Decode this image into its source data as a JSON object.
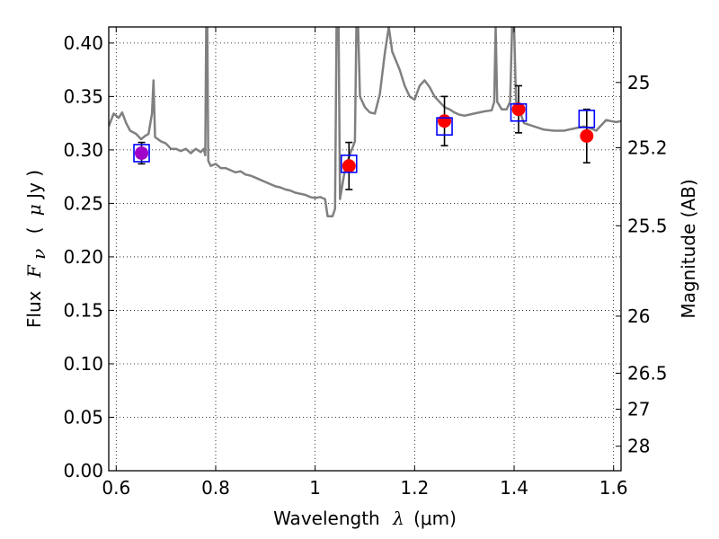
{
  "chart_data": {
    "type": "scatter",
    "x_axis": {
      "label_prefix": "Wavelength",
      "label_symbol": "λ",
      "label_unit": "(μm)",
      "xlim": [
        0.585,
        1.615
      ],
      "ticks": [
        0.6,
        0.8,
        1.0,
        1.2,
        1.4,
        1.6
      ],
      "tick_labels": [
        "0.6",
        "0.8",
        "1",
        "1.2",
        "1.4",
        "1.6"
      ]
    },
    "y_axis": {
      "label_prefix": "Flux",
      "label_symbol": "F",
      "label_subscript": "ν",
      "label_unit_open": "(",
      "label_unit_mu": "μ",
      "label_unit_rest": "Jy )",
      "ylim": [
        0.0,
        0.415
      ],
      "ticks": [
        0.0,
        0.05,
        0.1,
        0.15,
        0.2,
        0.25,
        0.3,
        0.35,
        0.4
      ],
      "tick_labels": [
        "0.00",
        "0.05",
        "0.10",
        "0.15",
        "0.20",
        "0.25",
        "0.30",
        "0.35",
        "0.40"
      ]
    },
    "right_axis": {
      "label": "Magnitude (AB)",
      "ticks": [
        {
          "label": "25",
          "mag": 25.0
        },
        {
          "label": "25.2",
          "mag": 25.2
        },
        {
          "label": "25.5",
          "mag": 25.5
        },
        {
          "label": "26",
          "mag": 26.0
        },
        {
          "label": "26.5",
          "mag": 26.5
        },
        {
          "label": "27",
          "mag": 27.0
        },
        {
          "label": "28",
          "mag": 28.0
        }
      ]
    },
    "grid": true,
    "spectrum": {
      "color": "#808080",
      "points": [
        [
          0.585,
          0.322
        ],
        [
          0.595,
          0.334
        ],
        [
          0.605,
          0.33
        ],
        [
          0.612,
          0.335
        ],
        [
          0.62,
          0.325
        ],
        [
          0.628,
          0.318
        ],
        [
          0.64,
          0.315
        ],
        [
          0.65,
          0.31
        ],
        [
          0.658,
          0.313
        ],
        [
          0.665,
          0.315
        ],
        [
          0.672,
          0.334
        ],
        [
          0.675,
          0.365
        ],
        [
          0.678,
          0.312
        ],
        [
          0.69,
          0.308
        ],
        [
          0.7,
          0.306
        ],
        [
          0.71,
          0.301
        ],
        [
          0.72,
          0.301
        ],
        [
          0.73,
          0.299
        ],
        [
          0.74,
          0.301
        ],
        [
          0.75,
          0.297
        ],
        [
          0.76,
          0.301
        ],
        [
          0.77,
          0.298
        ],
        [
          0.776,
          0.301
        ],
        [
          0.779,
          0.295
        ],
        [
          0.781,
          0.42
        ],
        [
          0.783,
          0.42
        ],
        [
          0.785,
          0.29
        ],
        [
          0.79,
          0.285
        ],
        [
          0.8,
          0.287
        ],
        [
          0.81,
          0.283
        ],
        [
          0.82,
          0.283
        ],
        [
          0.83,
          0.281
        ],
        [
          0.84,
          0.279
        ],
        [
          0.85,
          0.28
        ],
        [
          0.86,
          0.277
        ],
        [
          0.87,
          0.276
        ],
        [
          0.88,
          0.274
        ],
        [
          0.89,
          0.272
        ],
        [
          0.9,
          0.27
        ],
        [
          0.91,
          0.268
        ],
        [
          0.92,
          0.266
        ],
        [
          0.93,
          0.265
        ],
        [
          0.94,
          0.263
        ],
        [
          0.95,
          0.262
        ],
        [
          0.96,
          0.26
        ],
        [
          0.97,
          0.259
        ],
        [
          0.98,
          0.258
        ],
        [
          0.99,
          0.256
        ],
        [
          1.0,
          0.255
        ],
        [
          1.01,
          0.256
        ],
        [
          1.02,
          0.254
        ],
        [
          1.025,
          0.238
        ],
        [
          1.035,
          0.238
        ],
        [
          1.04,
          0.245
        ],
        [
          1.043,
          0.42
        ],
        [
          1.047,
          0.42
        ],
        [
          1.05,
          0.254
        ],
        [
          1.06,
          0.282
        ],
        [
          1.07,
          0.296
        ],
        [
          1.08,
          0.308
        ],
        [
          1.083,
          0.42
        ],
        [
          1.086,
          0.42
        ],
        [
          1.09,
          0.35
        ],
        [
          1.1,
          0.34
        ],
        [
          1.11,
          0.335
        ],
        [
          1.12,
          0.334
        ],
        [
          1.13,
          0.352
        ],
        [
          1.14,
          0.39
        ],
        [
          1.148,
          0.415
        ],
        [
          1.155,
          0.392
        ],
        [
          1.17,
          0.375
        ],
        [
          1.18,
          0.36
        ],
        [
          1.19,
          0.35
        ],
        [
          1.2,
          0.347
        ],
        [
          1.21,
          0.36
        ],
        [
          1.22,
          0.365
        ],
        [
          1.23,
          0.359
        ],
        [
          1.24,
          0.35
        ],
        [
          1.25,
          0.345
        ],
        [
          1.26,
          0.34
        ],
        [
          1.27,
          0.338
        ],
        [
          1.28,
          0.335
        ],
        [
          1.29,
          0.333
        ],
        [
          1.3,
          0.332
        ],
        [
          1.32,
          0.334
        ],
        [
          1.34,
          0.336
        ],
        [
          1.355,
          0.337
        ],
        [
          1.36,
          0.345
        ],
        [
          1.363,
          0.415
        ],
        [
          1.366,
          0.345
        ],
        [
          1.375,
          0.338
        ],
        [
          1.385,
          0.338
        ],
        [
          1.392,
          0.345
        ],
        [
          1.396,
          0.415
        ],
        [
          1.4,
          0.415
        ],
        [
          1.404,
          0.345
        ],
        [
          1.42,
          0.325
        ],
        [
          1.44,
          0.322
        ],
        [
          1.46,
          0.319
        ],
        [
          1.48,
          0.318
        ],
        [
          1.5,
          0.318
        ],
        [
          1.52,
          0.32
        ],
        [
          1.54,
          0.322
        ],
        [
          1.555,
          0.32
        ],
        [
          1.565,
          0.318
        ],
        [
          1.575,
          0.323
        ],
        [
          1.585,
          0.328
        ],
        [
          1.595,
          0.327
        ],
        [
          1.605,
          0.326
        ],
        [
          1.615,
          0.327
        ]
      ]
    },
    "observed_points": [
      {
        "x": 0.651,
        "y": 0.297,
        "yerr": 0.01,
        "color": "#a000c8"
      },
      {
        "x": 1.068,
        "y": 0.285,
        "yerr": 0.022,
        "color": "#ff0000"
      },
      {
        "x": 1.26,
        "y": 0.327,
        "yerr": 0.023,
        "color": "#ff0000"
      },
      {
        "x": 1.409,
        "y": 0.338,
        "yerr": 0.022,
        "color": "#ff0000"
      },
      {
        "x": 1.546,
        "y": 0.313,
        "yerr": 0.025,
        "color": "#ff0000"
      }
    ],
    "model_points": {
      "color": "#0000ff",
      "points": [
        {
          "x": 0.651,
          "y": 0.297
        },
        {
          "x": 1.068,
          "y": 0.287
        },
        {
          "x": 1.26,
          "y": 0.322
        },
        {
          "x": 1.409,
          "y": 0.335
        },
        {
          "x": 1.546,
          "y": 0.329
        }
      ]
    }
  }
}
